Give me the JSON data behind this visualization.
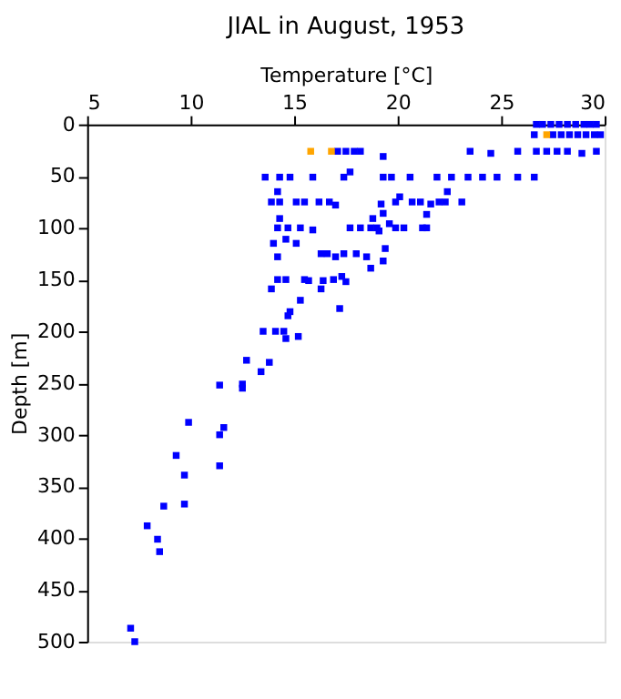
{
  "chart_data": {
    "type": "scatter",
    "title": "JIAL in August, 1953",
    "xlabel": "Temperature [°C]",
    "ylabel": "Depth [m]",
    "xlim": [
      5,
      30
    ],
    "xticks": [
      5,
      10,
      15,
      20,
      25,
      30
    ],
    "ylim": [
      500,
      0
    ],
    "yticks": [
      0,
      50,
      100,
      150,
      200,
      250,
      300,
      350,
      400,
      450,
      500
    ],
    "grid": false,
    "legend": false,
    "marker": "square",
    "series": [
      {
        "color": "#0000ff",
        "x": [
          26.7,
          27.0,
          27.4,
          27.8,
          28.2,
          28.6,
          29.0,
          29.3,
          29.6,
          26.6,
          27.5,
          27.9,
          28.3,
          28.7,
          29.1,
          29.5,
          29.8,
          17.1,
          17.5,
          17.9,
          18.2,
          19.3,
          23.5,
          24.5,
          25.8,
          26.7,
          27.2,
          27.7,
          28.2,
          28.9,
          29.6,
          13.6,
          14.3,
          14.8,
          15.9,
          17.4,
          17.7,
          19.3,
          19.7,
          20.6,
          21.9,
          22.6,
          23.4,
          24.1,
          24.8,
          25.8,
          26.6,
          14.2,
          22.4,
          13.9,
          14.3,
          15.1,
          15.5,
          16.2,
          16.7,
          17.0,
          19.2,
          19.9,
          20.1,
          20.7,
          21.1,
          21.6,
          22.0,
          22.3,
          23.1,
          21.4,
          19.3,
          14.3,
          18.8,
          19.6,
          14.2,
          14.7,
          15.3,
          15.9,
          17.7,
          18.2,
          18.7,
          19.0,
          19.1,
          19.9,
          20.3,
          21.2,
          21.4,
          14.0,
          14.6,
          15.1,
          19.4,
          14.2,
          16.3,
          16.6,
          17.0,
          17.4,
          18.0,
          18.5,
          19.3,
          18.7,
          14.2,
          14.6,
          15.5,
          15.7,
          16.4,
          16.9,
          17.3,
          17.5,
          16.3,
          13.9,
          15.3,
          14.8,
          14.7,
          17.2,
          13.5,
          14.1,
          14.5,
          14.6,
          15.2,
          12.7,
          13.8,
          13.4,
          11.4,
          12.5,
          12.5,
          9.9,
          11.6,
          11.4,
          9.3,
          9.7,
          11.4,
          8.7,
          9.7,
          7.9,
          8.4,
          8.5,
          7.1,
          7.3
        ],
        "values": [
          0,
          0,
          0,
          0,
          0,
          0,
          0,
          0,
          0,
          10,
          10,
          10,
          10,
          10,
          10,
          10,
          10,
          26,
          26,
          26,
          26,
          31,
          26,
          28,
          26,
          26,
          26,
          26,
          26,
          28,
          26,
          51,
          51,
          51,
          51,
          51,
          46,
          51,
          51,
          51,
          51,
          51,
          51,
          51,
          51,
          51,
          51,
          65,
          65,
          75,
          75,
          75,
          75,
          75,
          75,
          78,
          77,
          75,
          70,
          75,
          75,
          77,
          75,
          75,
          75,
          87,
          86,
          91,
          91,
          96,
          100,
          100,
          100,
          102,
          100,
          100,
          100,
          100,
          103,
          100,
          100,
          100,
          100,
          115,
          111,
          115,
          120,
          128,
          125,
          125,
          128,
          125,
          125,
          128,
          132,
          139,
          150,
          150,
          150,
          151,
          151,
          150,
          147,
          152,
          159,
          159,
          170,
          181,
          185,
          178,
          200,
          200,
          200,
          207,
          205,
          228,
          230,
          239,
          252,
          251,
          255,
          288,
          293,
          300,
          320,
          339,
          330,
          369,
          367,
          388,
          401,
          413,
          487,
          500
        ]
      },
      {
        "color": "#ffa500",
        "x": [
          15.8,
          16.8,
          27.2
        ],
        "values": [
          26,
          26,
          10
        ]
      }
    ]
  }
}
